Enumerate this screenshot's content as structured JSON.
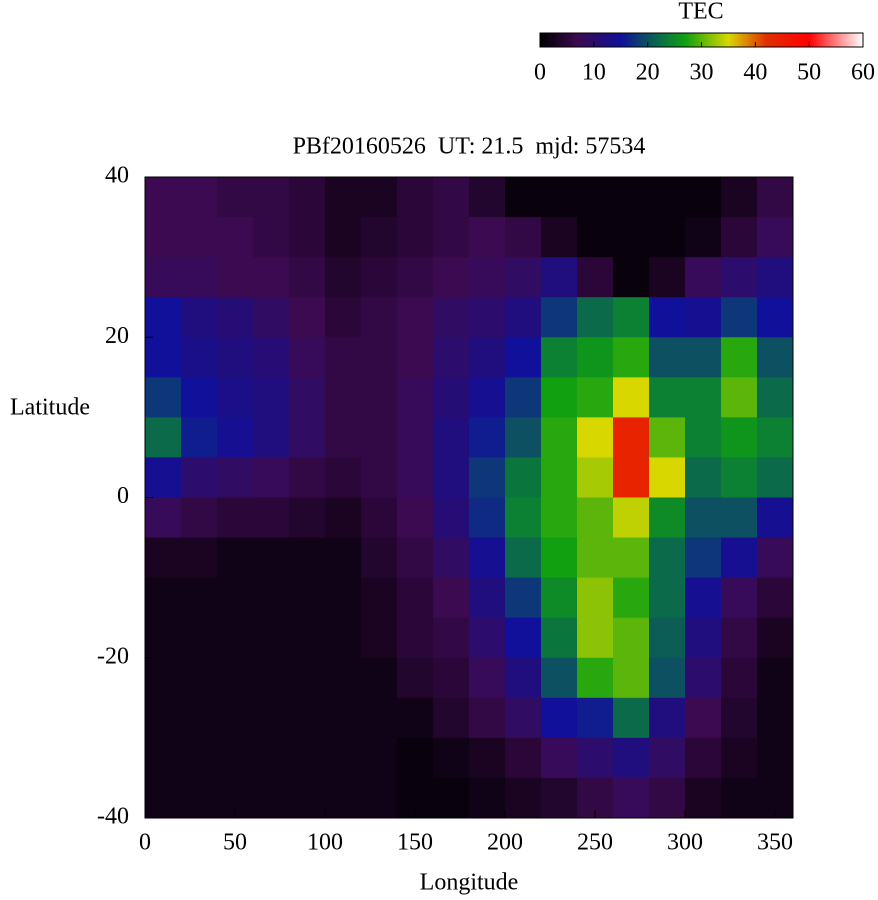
{
  "chart_data": {
    "type": "heatmap",
    "title": "PBf20160526  UT: 21.5  mjd: 57534",
    "x_label": "Longitude",
    "y_label": "Latitude",
    "colorbar_label": "TEC",
    "x": [
      10,
      30,
      50,
      70,
      90,
      110,
      130,
      150,
      170,
      190,
      210,
      230,
      250,
      270,
      290,
      310,
      330,
      350
    ],
    "y": [
      37.5,
      32.5,
      27.5,
      22.5,
      17.5,
      12.5,
      7.5,
      2.5,
      -2.5,
      -7.5,
      -12.5,
      -17.5,
      -22.5,
      -27.5,
      -32.5,
      -37.5
    ],
    "z": [
      [
        7,
        7,
        8,
        15,
        15,
        18,
        22,
        14,
        8,
        3,
        2,
        2,
        2,
        2,
        2,
        2
      ],
      [
        7,
        7,
        8,
        12,
        13,
        15,
        16,
        10,
        6,
        3,
        2,
        2,
        2,
        2,
        2,
        2
      ],
      [
        6,
        7,
        7,
        11,
        12,
        13,
        14,
        9,
        5,
        2,
        2,
        2,
        2,
        2,
        2,
        2
      ],
      [
        6,
        6,
        7,
        9,
        11,
        12,
        12,
        8,
        5,
        2,
        2,
        2,
        2,
        2,
        2,
        2
      ],
      [
        5,
        5,
        6,
        7,
        8,
        9,
        9,
        6,
        4,
        2,
        2,
        2,
        2,
        2,
        2,
        2
      ],
      [
        3,
        3,
        4,
        5,
        6,
        6,
        6,
        5,
        3,
        2,
        2,
        2,
        2,
        2,
        2,
        2
      ],
      [
        3,
        4,
        5,
        6,
        6,
        6,
        6,
        6,
        5,
        4,
        3,
        3,
        2,
        2,
        2,
        2
      ],
      [
        5,
        5,
        6,
        7,
        7,
        8,
        8,
        8,
        7,
        6,
        5,
        5,
        4,
        2,
        1,
        1
      ],
      [
        6,
        6,
        7,
        9,
        10,
        11,
        12,
        12,
        11,
        9,
        7,
        6,
        5,
        4,
        2,
        1
      ],
      [
        4,
        7,
        8,
        10,
        12,
        14,
        16,
        18,
        17,
        14,
        12,
        10,
        8,
        6,
        3,
        2
      ],
      [
        1,
        6,
        9,
        12,
        15,
        18,
        20,
        23,
        24,
        22,
        18,
        15,
        12,
        9,
        5,
        3
      ],
      [
        1,
        3,
        12,
        18,
        24,
        27,
        28,
        28,
        28,
        27,
        25,
        23,
        20,
        15,
        8,
        4
      ],
      [
        1,
        1,
        5,
        22,
        26,
        28,
        35,
        33,
        30,
        30,
        32,
        32,
        28,
        16,
        10,
        6
      ],
      [
        1,
        1,
        1,
        24,
        28,
        35,
        44,
        44,
        34,
        30,
        28,
        30,
        30,
        22,
        12,
        8
      ],
      [
        1,
        1,
        3,
        15,
        20,
        24,
        30,
        35,
        25,
        22,
        22,
        21,
        20,
        12,
        9,
        6
      ],
      [
        1,
        2,
        8,
        14,
        20,
        24,
        24,
        22,
        20,
        18,
        14,
        12,
        10,
        7,
        5,
        3
      ],
      [
        3,
        5,
        10,
        18,
        28,
        30,
        26,
        24,
        20,
        14,
        8,
        6,
        5,
        4,
        3,
        2
      ],
      [
        6,
        8,
        12,
        15,
        20,
        22,
        24,
        22,
        14,
        8,
        5,
        3,
        2,
        2,
        2,
        2
      ]
    ],
    "xlim": [
      0,
      360
    ],
    "ylim": [
      -40,
      40
    ],
    "xticks": [
      0,
      50,
      100,
      150,
      200,
      250,
      300,
      350
    ],
    "yticks": [
      -40,
      -20,
      0,
      20,
      40
    ],
    "clim": [
      0,
      60
    ],
    "cticks": [
      0,
      10,
      20,
      30,
      40,
      50,
      60
    ],
    "colorscale": [
      {
        "value": 0,
        "color": "#000000"
      },
      {
        "value": 7,
        "color": "#3c0a50"
      },
      {
        "value": 15,
        "color": "#10109a"
      },
      {
        "value": 22,
        "color": "#0a6a4a"
      },
      {
        "value": 27,
        "color": "#10a010"
      },
      {
        "value": 35,
        "color": "#d8d800"
      },
      {
        "value": 42,
        "color": "#e03000"
      },
      {
        "value": 50,
        "color": "#ff0000"
      },
      {
        "value": 60,
        "color": "#ffffff"
      }
    ]
  }
}
